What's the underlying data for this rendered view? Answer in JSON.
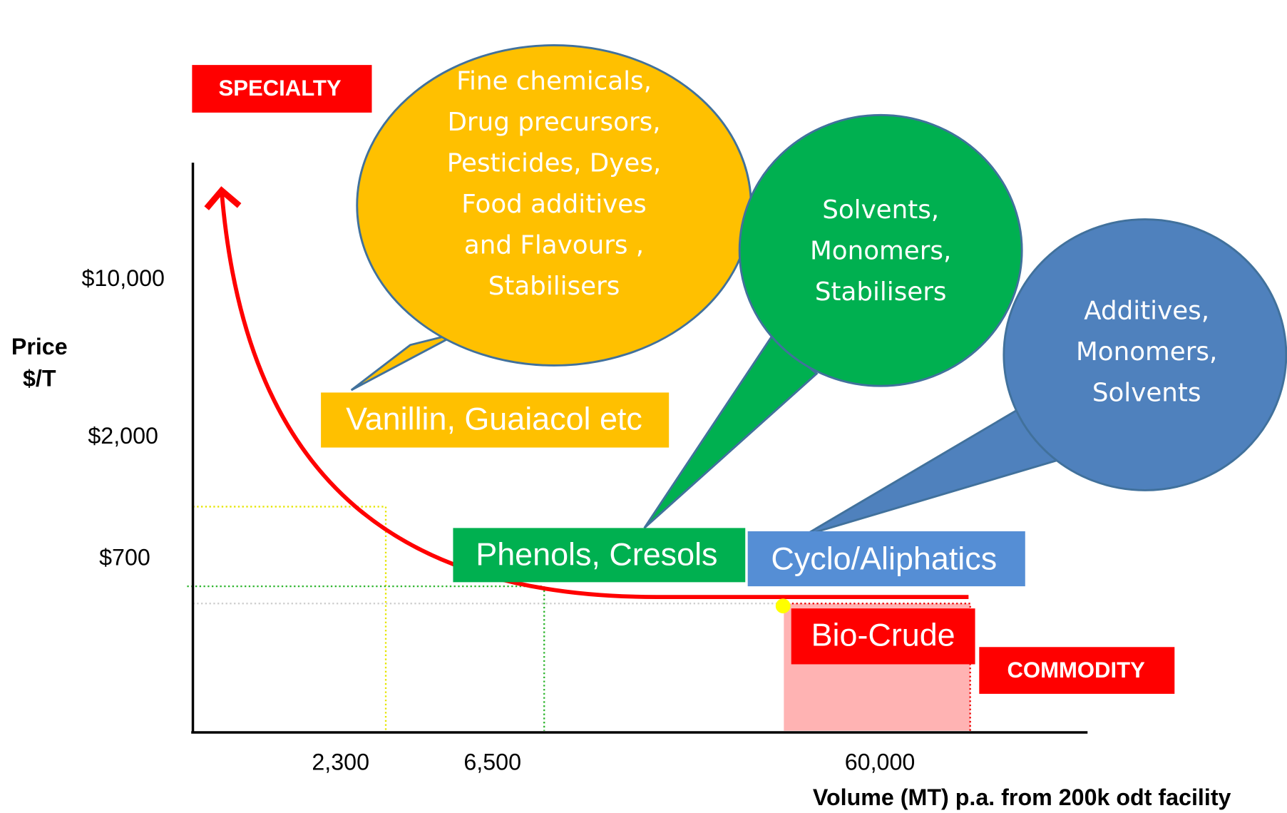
{
  "labels": {
    "specialty": "SPECIALTY",
    "commodity": "COMMODITY"
  },
  "y_axis": {
    "title": [
      "Price",
      "$/T"
    ],
    "ticks": [
      "$10,000",
      "$2,000",
      "$700"
    ]
  },
  "x_axis": {
    "ticks": [
      "2,300",
      "6,500",
      "60,000"
    ],
    "title": "Volume (MT) p.a. from 200k odt facility"
  },
  "bubbles": [
    {
      "lines": [
        "Fine chemicals,",
        "Drug precursors,",
        "Pesticides, Dyes,",
        "Food additives",
        "and Flavours ,",
        "Stabilisers"
      ]
    },
    {
      "lines": [
        "Solvents,",
        "Monomers,",
        "Stabilisers"
      ]
    },
    {
      "lines": [
        "Additives,",
        "Monomers,",
        "Solvents"
      ]
    }
  ],
  "boxes": [
    "Vanillin, Guaiacol etc",
    "Phenols, Cresols",
    "Cyclo/Aliphatics",
    "Bio-Crude"
  ]
}
